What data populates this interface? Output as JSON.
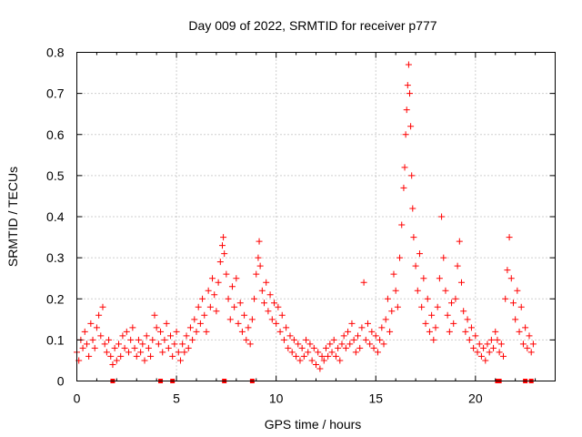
{
  "chart_data": {
    "type": "scatter",
    "title": "Day 009 of 2022, SRMTID for receiver p777",
    "xlabel": "GPS time / hours",
    "ylabel": "SRMTID / TECUs",
    "xlim": [
      0,
      24
    ],
    "ylim": [
      0,
      0.8
    ],
    "grid": true,
    "marker": "plus",
    "color": "#ff0000",
    "x_ticks": [
      0,
      5,
      10,
      15,
      20
    ],
    "x_tick_labels": [
      "0",
      "5",
      "10",
      "15",
      "20"
    ],
    "y_ticks": [
      0,
      0.1,
      0.2,
      0.3,
      0.4,
      0.5,
      0.6,
      0.7,
      0.8
    ],
    "y_tick_labels": [
      "0",
      "0.1",
      "0.2",
      "0.3",
      "0.4",
      "0.5",
      "0.6",
      "0.7",
      "0.8"
    ],
    "zero_markers_x": [
      1.8,
      4.2,
      4.8,
      7.4,
      8.8,
      21.1,
      21.2,
      22.5,
      22.8
    ],
    "series": [
      {
        "name": "SRMTID",
        "points": [
          [
            0.0,
            0.07
          ],
          [
            0.1,
            0.05
          ],
          [
            0.2,
            0.1
          ],
          [
            0.3,
            0.08
          ],
          [
            0.4,
            0.12
          ],
          [
            0.5,
            0.09
          ],
          [
            0.6,
            0.06
          ],
          [
            0.7,
            0.14
          ],
          [
            0.8,
            0.1
          ],
          [
            0.9,
            0.08
          ],
          [
            1.0,
            0.13
          ],
          [
            1.1,
            0.16
          ],
          [
            1.2,
            0.11
          ],
          [
            1.3,
            0.18
          ],
          [
            1.4,
            0.09
          ],
          [
            1.5,
            0.07
          ],
          [
            1.6,
            0.1
          ],
          [
            1.7,
            0.06
          ],
          [
            1.8,
            0.04
          ],
          [
            1.9,
            0.08
          ],
          [
            2.0,
            0.05
          ],
          [
            2.1,
            0.09
          ],
          [
            2.2,
            0.06
          ],
          [
            2.3,
            0.11
          ],
          [
            2.4,
            0.08
          ],
          [
            2.5,
            0.12
          ],
          [
            2.6,
            0.07
          ],
          [
            2.7,
            0.1
          ],
          [
            2.8,
            0.13
          ],
          [
            2.9,
            0.08
          ],
          [
            3.0,
            0.06
          ],
          [
            3.1,
            0.1
          ],
          [
            3.2,
            0.07
          ],
          [
            3.3,
            0.09
          ],
          [
            3.4,
            0.05
          ],
          [
            3.5,
            0.11
          ],
          [
            3.6,
            0.08
          ],
          [
            3.7,
            0.06
          ],
          [
            3.8,
            0.1
          ],
          [
            3.9,
            0.16
          ],
          [
            4.0,
            0.13
          ],
          [
            4.1,
            0.09
          ],
          [
            4.2,
            0.12
          ],
          [
            4.3,
            0.07
          ],
          [
            4.4,
            0.1
          ],
          [
            4.5,
            0.14
          ],
          [
            4.6,
            0.08
          ],
          [
            4.7,
            0.11
          ],
          [
            4.8,
            0.06
          ],
          [
            4.9,
            0.09
          ],
          [
            5.0,
            0.12
          ],
          [
            5.1,
            0.07
          ],
          [
            5.2,
            0.05
          ],
          [
            5.3,
            0.09
          ],
          [
            5.4,
            0.07
          ],
          [
            5.5,
            0.11
          ],
          [
            5.6,
            0.08
          ],
          [
            5.7,
            0.13
          ],
          [
            5.8,
            0.1
          ],
          [
            5.9,
            0.15
          ],
          [
            6.0,
            0.12
          ],
          [
            6.1,
            0.18
          ],
          [
            6.2,
            0.14
          ],
          [
            6.3,
            0.2
          ],
          [
            6.4,
            0.16
          ],
          [
            6.5,
            0.12
          ],
          [
            6.6,
            0.22
          ],
          [
            6.7,
            0.18
          ],
          [
            6.8,
            0.25
          ],
          [
            6.9,
            0.21
          ],
          [
            7.0,
            0.17
          ],
          [
            7.1,
            0.24
          ],
          [
            7.2,
            0.29
          ],
          [
            7.3,
            0.33
          ],
          [
            7.35,
            0.35
          ],
          [
            7.4,
            0.31
          ],
          [
            7.5,
            0.26
          ],
          [
            7.6,
            0.2
          ],
          [
            7.7,
            0.15
          ],
          [
            7.8,
            0.23
          ],
          [
            7.9,
            0.18
          ],
          [
            8.0,
            0.25
          ],
          [
            8.1,
            0.14
          ],
          [
            8.2,
            0.19
          ],
          [
            8.3,
            0.12
          ],
          [
            8.4,
            0.16
          ],
          [
            8.5,
            0.1
          ],
          [
            8.6,
            0.13
          ],
          [
            8.7,
            0.09
          ],
          [
            8.8,
            0.15
          ],
          [
            8.9,
            0.2
          ],
          [
            9.0,
            0.26
          ],
          [
            9.1,
            0.3
          ],
          [
            9.15,
            0.34
          ],
          [
            9.2,
            0.28
          ],
          [
            9.3,
            0.22
          ],
          [
            9.4,
            0.19
          ],
          [
            9.5,
            0.24
          ],
          [
            9.6,
            0.17
          ],
          [
            9.7,
            0.21
          ],
          [
            9.8,
            0.15
          ],
          [
            9.9,
            0.19
          ],
          [
            10.0,
            0.14
          ],
          [
            10.1,
            0.18
          ],
          [
            10.2,
            0.12
          ],
          [
            10.3,
            0.16
          ],
          [
            10.4,
            0.1
          ],
          [
            10.5,
            0.13
          ],
          [
            10.6,
            0.08
          ],
          [
            10.7,
            0.11
          ],
          [
            10.8,
            0.07
          ],
          [
            10.9,
            0.1
          ],
          [
            11.0,
            0.06
          ],
          [
            11.1,
            0.09
          ],
          [
            11.2,
            0.05
          ],
          [
            11.3,
            0.08
          ],
          [
            11.4,
            0.06
          ],
          [
            11.5,
            0.1
          ],
          [
            11.6,
            0.07
          ],
          [
            11.7,
            0.09
          ],
          [
            11.8,
            0.05
          ],
          [
            11.9,
            0.08
          ],
          [
            12.0,
            0.04
          ],
          [
            12.1,
            0.07
          ],
          [
            12.2,
            0.03
          ],
          [
            12.3,
            0.06
          ],
          [
            12.4,
            0.05
          ],
          [
            12.5,
            0.08
          ],
          [
            12.6,
            0.06
          ],
          [
            12.7,
            0.09
          ],
          [
            12.8,
            0.07
          ],
          [
            12.9,
            0.1
          ],
          [
            13.0,
            0.06
          ],
          [
            13.1,
            0.08
          ],
          [
            13.2,
            0.05
          ],
          [
            13.3,
            0.09
          ],
          [
            13.4,
            0.11
          ],
          [
            13.5,
            0.08
          ],
          [
            13.6,
            0.12
          ],
          [
            13.7,
            0.09
          ],
          [
            13.8,
            0.14
          ],
          [
            13.9,
            0.1
          ],
          [
            14.0,
            0.07
          ],
          [
            14.1,
            0.11
          ],
          [
            14.2,
            0.08
          ],
          [
            14.3,
            0.13
          ],
          [
            14.4,
            0.24
          ],
          [
            14.5,
            0.1
          ],
          [
            14.6,
            0.14
          ],
          [
            14.7,
            0.09
          ],
          [
            14.8,
            0.12
          ],
          [
            14.9,
            0.08
          ],
          [
            15.0,
            0.11
          ],
          [
            15.1,
            0.07
          ],
          [
            15.2,
            0.1
          ],
          [
            15.3,
            0.13
          ],
          [
            15.4,
            0.09
          ],
          [
            15.5,
            0.15
          ],
          [
            15.6,
            0.2
          ],
          [
            15.7,
            0.12
          ],
          [
            15.8,
            0.17
          ],
          [
            15.9,
            0.26
          ],
          [
            16.0,
            0.22
          ],
          [
            16.1,
            0.18
          ],
          [
            16.2,
            0.3
          ],
          [
            16.3,
            0.38
          ],
          [
            16.4,
            0.47
          ],
          [
            16.45,
            0.52
          ],
          [
            16.5,
            0.6
          ],
          [
            16.55,
            0.66
          ],
          [
            16.6,
            0.72
          ],
          [
            16.65,
            0.77
          ],
          [
            16.7,
            0.7
          ],
          [
            16.75,
            0.62
          ],
          [
            16.8,
            0.5
          ],
          [
            16.85,
            0.42
          ],
          [
            16.9,
            0.35
          ],
          [
            17.0,
            0.28
          ],
          [
            17.1,
            0.22
          ],
          [
            17.2,
            0.31
          ],
          [
            17.3,
            0.18
          ],
          [
            17.4,
            0.25
          ],
          [
            17.5,
            0.14
          ],
          [
            17.6,
            0.2
          ],
          [
            17.7,
            0.12
          ],
          [
            17.8,
            0.16
          ],
          [
            17.9,
            0.1
          ],
          [
            18.0,
            0.13
          ],
          [
            18.1,
            0.18
          ],
          [
            18.2,
            0.25
          ],
          [
            18.3,
            0.4
          ],
          [
            18.4,
            0.3
          ],
          [
            18.5,
            0.22
          ],
          [
            18.6,
            0.16
          ],
          [
            18.7,
            0.12
          ],
          [
            18.8,
            0.19
          ],
          [
            18.9,
            0.14
          ],
          [
            19.0,
            0.2
          ],
          [
            19.1,
            0.28
          ],
          [
            19.2,
            0.34
          ],
          [
            19.3,
            0.24
          ],
          [
            19.4,
            0.17
          ],
          [
            19.5,
            0.12
          ],
          [
            19.6,
            0.15
          ],
          [
            19.7,
            0.1
          ],
          [
            19.8,
            0.13
          ],
          [
            19.9,
            0.08
          ],
          [
            20.0,
            0.11
          ],
          [
            20.1,
            0.07
          ],
          [
            20.2,
            0.09
          ],
          [
            20.3,
            0.06
          ],
          [
            20.4,
            0.08
          ],
          [
            20.5,
            0.05
          ],
          [
            20.6,
            0.09
          ],
          [
            20.7,
            0.07
          ],
          [
            20.8,
            0.1
          ],
          [
            20.9,
            0.08
          ],
          [
            21.0,
            0.12
          ],
          [
            21.1,
            0.1
          ],
          [
            21.2,
            0.07
          ],
          [
            21.3,
            0.09
          ],
          [
            21.4,
            0.06
          ],
          [
            21.5,
            0.2
          ],
          [
            21.6,
            0.27
          ],
          [
            21.7,
            0.35
          ],
          [
            21.8,
            0.25
          ],
          [
            21.9,
            0.19
          ],
          [
            22.0,
            0.15
          ],
          [
            22.1,
            0.22
          ],
          [
            22.2,
            0.12
          ],
          [
            22.3,
            0.18
          ],
          [
            22.4,
            0.09
          ],
          [
            22.5,
            0.13
          ],
          [
            22.6,
            0.08
          ],
          [
            22.7,
            0.11
          ],
          [
            22.8,
            0.07
          ],
          [
            22.9,
            0.09
          ]
        ]
      }
    ]
  }
}
